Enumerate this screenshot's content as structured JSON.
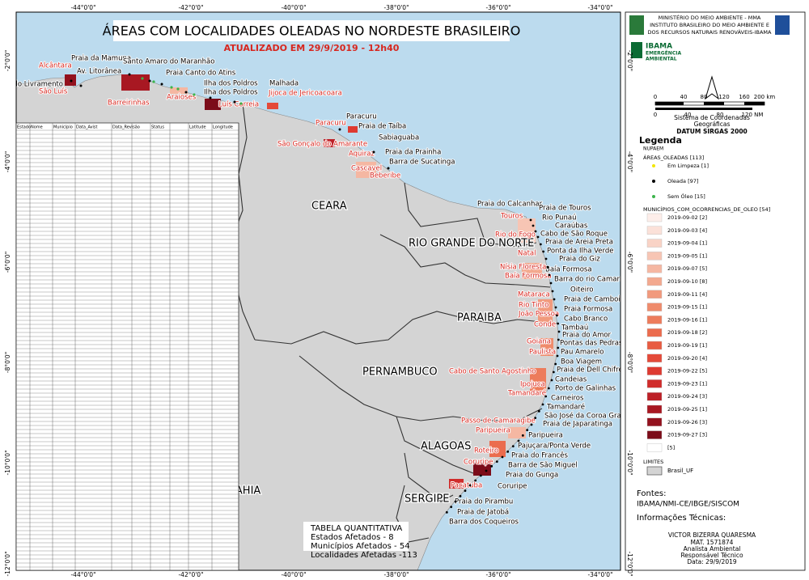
{
  "title": "ÁREAS COM LOCALIDADES OLEADAS NO NORDESTE BRASILEIRO",
  "subtitle": "ATUALIZADO EM 29/9/2019 - 12h40",
  "longitude_labels": [
    "-44°0'0\"",
    "-42°0'0\"",
    "-40°0'0\"",
    "-38°0'0\"",
    "-36°0'0\"",
    "-34°0'0\""
  ],
  "latitude_labels": [
    "-2°0'0\"",
    "-4°0'0\"",
    "-6°0'0\"",
    "-8°0'0\"",
    "-10°0'0\"",
    "-12°0'0\""
  ],
  "states": [
    "CEARA",
    "RIO GRANDE DO NORTE",
    "PARAIBA",
    "PERNAMBUCO",
    "ALAGOAS",
    "SERGIPE",
    "BAHIA"
  ],
  "municipalities": [
    "Alcântara",
    "São Luís",
    "Barreirinhas",
    "Araioses",
    "Luís Correia",
    "Jijoca de Jericoacoara",
    "Paracuru",
    "São Gonçalo do Amarante",
    "Aquiraz",
    "Cascavel",
    "Beberibe",
    "Touros",
    "Rio do Fogo",
    "Natal",
    "Nísia Floresta",
    "Baía Formosa",
    "Mataraca",
    "Rio Tinto",
    "João Pessoa",
    "Conde",
    "Goiana",
    "Paulista",
    "Cabo de Santo Agostinho",
    "Ipojuca",
    "Tamandaré",
    "Passo de Camaragibe",
    "Paripueira",
    "Roteiro",
    "Coruripe",
    "Pacatuba"
  ],
  "localities": [
    "Praia da Mamuna",
    "Santo Amaro do Maranhão",
    "Av. Litorânea",
    "Praia do Livramento",
    "Praia Canto do Atins",
    "Ilha dos Poldros",
    "Ilha dos Poldros",
    "Malhada",
    "Paracuru",
    "Praia de Taíba",
    "Sabiaguaba",
    "Praia da Prainha",
    "Barra de Sucatinga",
    "Praia do Calcanhar",
    "Praia de Touros",
    "Rio Punaú",
    "Caraúbas",
    "Cabo de São Roque",
    "Praia de Areia Preta",
    "Ponta da Ilha Verde",
    "Praia do Giz",
    "Baía Formosa",
    "Barra do rio Camaratuba",
    "Oiteiro",
    "Praia de Camboinha",
    "Praia Formosa",
    "Cabo Branco",
    "Tambaú",
    "Praia do Amor",
    "Pontas das Pedras",
    "Pau Amarelo",
    "Boa Viagem",
    "Praia de Dell Chifre",
    "Candeias",
    "Porto de Galinhas",
    "Carneiros",
    "Tamandaré",
    "São José da Coroa Grande",
    "Praia de Japaratinga",
    "Paripueira",
    "Pajuçara/Ponta Verde",
    "Praia do Francês",
    "Barra de São Miguel",
    "Praia do Gunga",
    "Coruripe",
    "Praia do Pirambu",
    "Praia de Jatobá",
    "Barra dos Coqueiros"
  ],
  "data_table": {
    "header": [
      "Estado",
      "Nome",
      "Municipio",
      "Data_Avist",
      "Data_Revisão",
      "Status",
      "Latitude",
      "Longitude"
    ]
  },
  "summary": {
    "title": "TABELA QUANTITATIVA",
    "lines": [
      "Estados Afetados - 8",
      "Municípios Afetados - 54",
      "Localidades Afetadas -113"
    ]
  },
  "header": {
    "lines": [
      "MINISTÉRIO DO MEIO AMBIENTE - MMA",
      "INSTITUTO BRASILEIRO DO MEIO AMBIENTE E",
      "DOS RECURSOS NATURAIS RENOVÁVEIS-IBAMA"
    ],
    "brand": "IBAMA",
    "brand_sub": [
      "EMERGÊNCIA",
      "AMBIENTAL"
    ]
  },
  "scale": {
    "km": [
      "0",
      "40",
      "80",
      "120",
      "160",
      "200 km"
    ],
    "nm": [
      "0",
      "40",
      "80",
      "120 NM"
    ]
  },
  "crs": [
    "Sistema de Coordenadas",
    "Geográficas",
    "DATUM SIRGAS 2000"
  ],
  "legend": {
    "title": "Legenda",
    "group": "NUPAEM",
    "areas_title": "ÁREAS_OLEADAS [113]",
    "areas": [
      {
        "label": "Em Limpeza [1]",
        "color": "#f2e600"
      },
      {
        "label": "Oleada [97]",
        "color": "#000000"
      },
      {
        "label": "Sem Óleo [15]",
        "color": "#3cb44b"
      }
    ],
    "municipalities_title": "MUNICÍPIOS_COM_OCORRENCIAS_DE_OLEO [54]",
    "municipalities": [
      {
        "label": "2019-09-02 [2]",
        "color": "#fdeeea"
      },
      {
        "label": "2019-09-03 [4]",
        "color": "#fbe1d9"
      },
      {
        "label": "2019-09-04 [1]",
        "color": "#f9d3c6"
      },
      {
        "label": "2019-09-05 [1]",
        "color": "#f7c5b4"
      },
      {
        "label": "2019-09-07 [5]",
        "color": "#f5b7a2"
      },
      {
        "label": "2019-09-10 [8]",
        "color": "#f3a98f"
      },
      {
        "label": "2019-09-11 [4]",
        "color": "#f19a7d"
      },
      {
        "label": "2019-09-15 [1]",
        "color": "#ef8b6c"
      },
      {
        "label": "2019-09-16 [1]",
        "color": "#ed7c5c"
      },
      {
        "label": "2019-09-18 [2]",
        "color": "#eb6c4e"
      },
      {
        "label": "2019-09-19 [1]",
        "color": "#e85c42"
      },
      {
        "label": "2019-09-20 [4]",
        "color": "#e44a39"
      },
      {
        "label": "2019-09-22 [5]",
        "color": "#de3a31"
      },
      {
        "label": "2019-09-23 [1]",
        "color": "#d02c2b"
      },
      {
        "label": "2019-09-24 [3]",
        "color": "#bd2027"
      },
      {
        "label": "2019-09-25 [1]",
        "color": "#a81822"
      },
      {
        "label": "2019-09-26 [3]",
        "color": "#93121e"
      },
      {
        "label": "2019-09-27 [3]",
        "color": "#7c0c19"
      },
      {
        "label": "[5]",
        "color": "#ffffff"
      }
    ],
    "limits_title": "LIMITES",
    "limits": "Brasil_UF"
  },
  "sources_title": "Fontes:",
  "sources": "IBAMA/NMI-CE/IBGE/SISCOM",
  "tech_title": "Informações Técnicas:",
  "tech": [
    "VICTOR BIZERRA QUARESMA",
    "MAT. 1571874",
    "Analista Ambiental",
    "Responsável Técnico",
    "Data: 29/9/2019"
  ]
}
